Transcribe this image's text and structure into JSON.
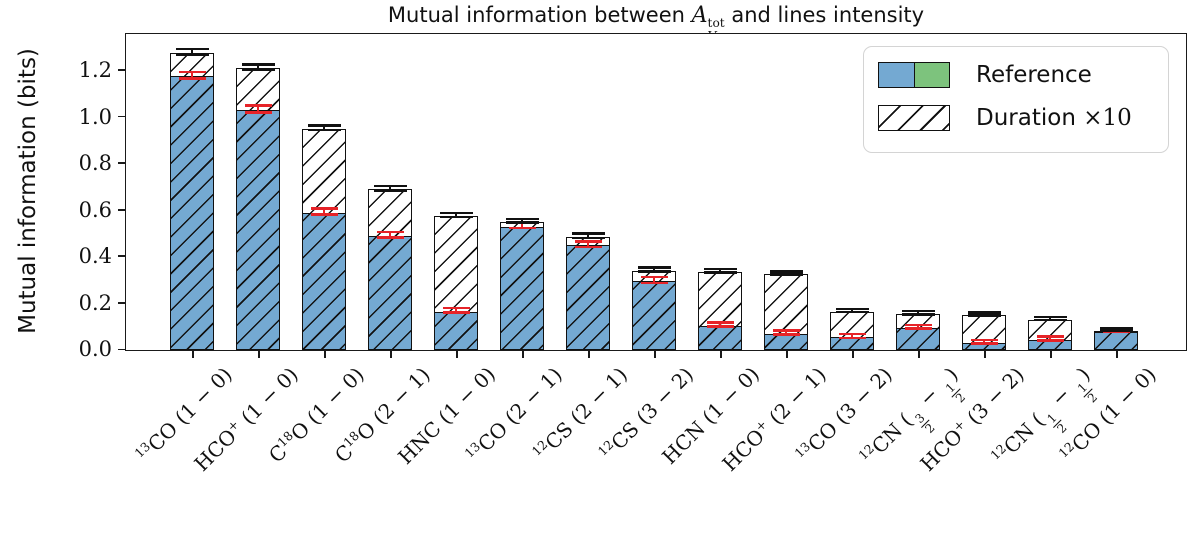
{
  "figure": {
    "title_parts": {
      "text_before": "Mutual information between ",
      "math_symbol": "A",
      "math_sup": "tot",
      "math_sub": "V",
      "text_after": " and lines intensity"
    },
    "ylabel": "Mutual information (bits)"
  },
  "colors": {
    "reference_blue": "#74a9d2",
    "reference_green": "#7dc37d",
    "duration_face": "#ffffff",
    "bar_edge": "#111111",
    "error_reference": "#e62328",
    "error_duration": "#111111",
    "axis": "#1a1a1a"
  },
  "chart_data": {
    "type": "bar",
    "title": "Mutual information between A_V^tot and lines intensity",
    "xlabel": "",
    "ylabel": "Mutual information (bits)",
    "ylim": [
      0,
      1.365
    ],
    "yticks": [
      "0.0",
      "0.2",
      "0.4",
      "0.6",
      "0.8",
      "1.0",
      "1.2"
    ],
    "x_tick_rotation": 45,
    "grid": false,
    "legend_position": "upper right",
    "legend": [
      {
        "label": "Reference",
        "swatch": "split-blue-green"
      },
      {
        "label": "Duration ×10",
        "label_text": "Duration ",
        "label_mult": "×10",
        "swatch": "white-hatched"
      }
    ],
    "categories": [
      "^{13}CO (1 - 0)",
      "HCO^{+} (1 - 0)",
      "C^{18}O (1 - 0)",
      "C^{18}O (2 - 1)",
      "HNC (1 - 0)",
      "^{13}CO (2 - 1)",
      "^{12}CS (2 - 1)",
      "^{12}CS (3 - 2)",
      "HCN (1 - 0)",
      "HCO^{+} (2 - 1)",
      "^{13}CO (3 - 2)",
      "^{12}CN (3/2 - 1/2)",
      "HCO^{+} (3 - 2)",
      "^{12}CN (1/2 - 1/2)",
      "^{12}CO (1 - 0)"
    ],
    "series": [
      {
        "name": "Reference",
        "values": [
          1.175,
          1.03,
          0.59,
          0.49,
          0.165,
          0.53,
          0.45,
          0.295,
          0.105,
          0.07,
          0.055,
          0.095,
          0.03,
          0.045,
          0.078
        ],
        "errors": [
          0.015,
          0.015,
          0.013,
          0.013,
          0.01,
          0.012,
          0.012,
          0.013,
          0.009,
          0.009,
          0.009,
          0.008,
          0.008,
          0.009,
          0.006
        ]
      },
      {
        "name": "Duration ×10",
        "values": [
          1.275,
          1.21,
          0.95,
          0.69,
          0.575,
          0.55,
          0.485,
          0.34,
          0.335,
          0.325,
          0.165,
          0.155,
          0.15,
          0.13,
          0.083
        ],
        "errors": [
          0.012,
          0.012,
          0.01,
          0.01,
          0.008,
          0.008,
          0.01,
          0.009,
          0.008,
          0.007,
          0.007,
          0.007,
          0.007,
          0.007,
          0.005
        ]
      }
    ]
  }
}
